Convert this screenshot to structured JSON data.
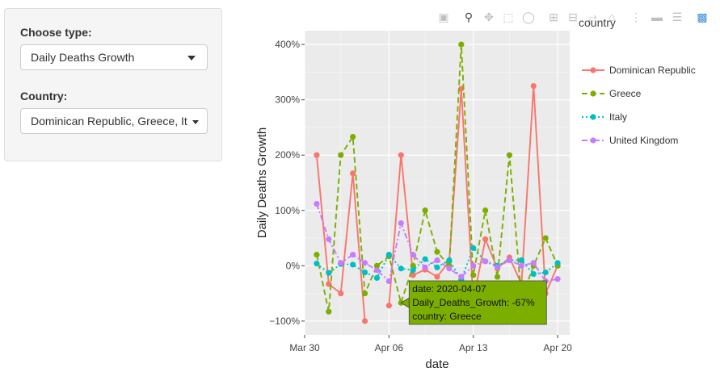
{
  "controls": {
    "type_label": "Choose type:",
    "type_value": "Daily Deaths Growth",
    "country_label": "Country:",
    "country_value": "Dominican Republic, Greece, It"
  },
  "modebar": {
    "icons": [
      "camera-icon",
      "zoom-icon",
      "pan-icon",
      "box-select-icon",
      "lasso-icon",
      "zoom-in-icon",
      "zoom-out-icon",
      "autoscale-icon",
      "reset-axes-icon",
      "spike-lines-icon",
      "hover-closest-icon",
      "hover-compare-icon",
      "plotly-logo-icon"
    ]
  },
  "chart_data": {
    "type": "line",
    "xlabel": "date",
    "ylabel": "Daily Deaths Growth",
    "legend_title": "country",
    "legend_position": "right",
    "grid": true,
    "x_ticks": [
      "Mar 30",
      "Apr 06",
      "Apr 13",
      "Apr 20"
    ],
    "x_tick_dates": [
      "2020-03-30",
      "2020-04-06",
      "2020-04-13",
      "2020-04-20"
    ],
    "y_ticks": [
      "−100%",
      "0%",
      "100%",
      "200%",
      "300%",
      "400%"
    ],
    "y_tick_values": [
      -100,
      0,
      100,
      200,
      300,
      400
    ],
    "xlim": [
      "2020-03-30",
      "2020-04-21"
    ],
    "ylim": [
      -125,
      425
    ],
    "x": [
      "2020-03-31",
      "2020-04-01",
      "2020-04-02",
      "2020-04-03",
      "2020-04-04",
      "2020-04-05",
      "2020-04-06",
      "2020-04-07",
      "2020-04-08",
      "2020-04-09",
      "2020-04-10",
      "2020-04-11",
      "2020-04-12",
      "2020-04-13",
      "2020-04-14",
      "2020-04-15",
      "2020-04-16",
      "2020-04-17",
      "2020-04-18",
      "2020-04-19",
      "2020-04-20"
    ],
    "series": [
      {
        "name": "Dominican Republic",
        "color": "#F8766D",
        "dash": "solid",
        "values": [
          200,
          -33,
          -50,
          167,
          -100,
          null,
          -72,
          200,
          -17,
          -7,
          -20,
          8,
          320,
          -63,
          48,
          -5,
          15,
          -33,
          325,
          -50,
          0
        ]
      },
      {
        "name": "Greece",
        "color": "#7CAE00",
        "dash": "dashed",
        "values": [
          20,
          -83,
          200,
          233,
          -50,
          0,
          17,
          -67,
          0,
          100,
          25,
          0,
          400,
          -17,
          100,
          -20,
          200,
          -60,
          0,
          50,
          0
        ]
      },
      {
        "name": "Italy",
        "color": "#00BFC4",
        "dash": "dotted",
        "values": [
          4,
          -13,
          3,
          2,
          -12,
          -22,
          20,
          -5,
          -8,
          12,
          -3,
          10,
          -25,
          32,
          8,
          0,
          10,
          10,
          -15,
          -12,
          5
        ]
      },
      {
        "name": "United Kingdom",
        "color": "#C77CFF",
        "dash": "dashdot",
        "values": [
          112,
          48,
          5,
          20,
          5,
          -8,
          -28,
          77,
          20,
          -3,
          10,
          -5,
          -20,
          0,
          8,
          -3,
          10,
          0,
          5,
          -28,
          -24
        ]
      }
    ],
    "tooltip": {
      "x": "2020-04-07",
      "series": "Greece",
      "lines": [
        "date: 2020-04-07",
        "Daily_Deaths_Growth: -67%",
        "country: Greece"
      ]
    }
  }
}
